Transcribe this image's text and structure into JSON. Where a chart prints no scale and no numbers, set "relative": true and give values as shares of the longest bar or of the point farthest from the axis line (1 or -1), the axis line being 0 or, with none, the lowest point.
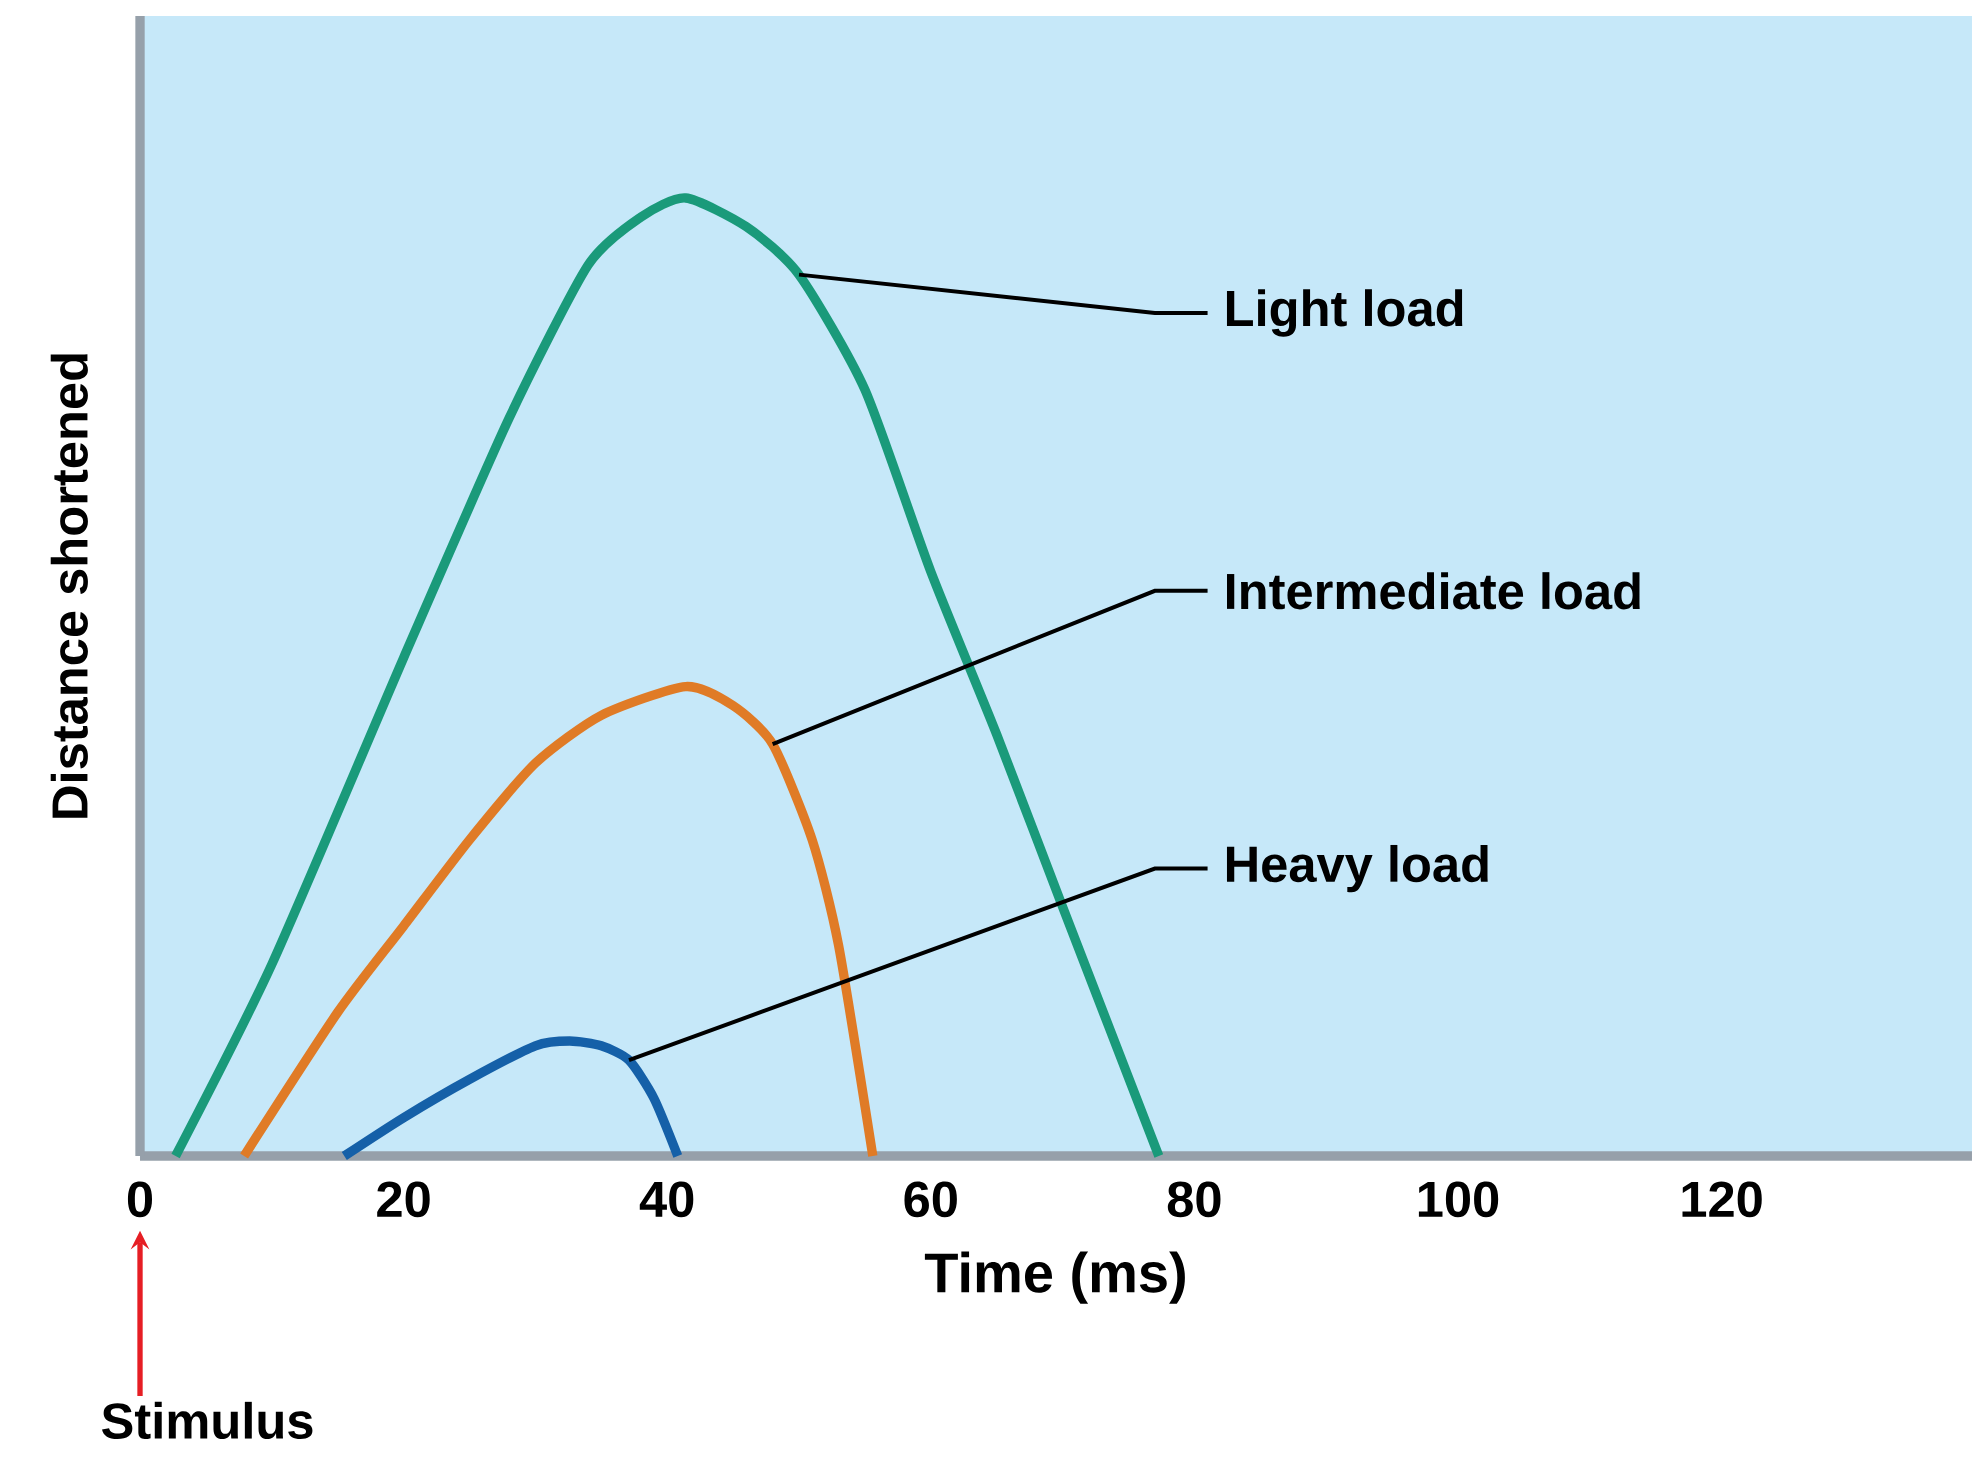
{
  "chart_data": {
    "type": "line",
    "xlabel": "Time (ms)",
    "ylabel": "Distance shortened",
    "relative": true,
    "xlim": [
      0,
      139
    ],
    "xticks": [
      0,
      20,
      40,
      60,
      80,
      100,
      120
    ],
    "grid": false,
    "marker": "none",
    "line_style": "solid",
    "annotations": [
      "Stimulus"
    ],
    "series": [
      {
        "name": "Light load",
        "color": "#1a9a7a",
        "x": [
          2.7,
          10,
          20,
          28,
          34,
          38,
          41.4,
          46,
          50,
          55,
          60,
          65,
          70,
          77.3
        ],
        "values": [
          0,
          0.2,
          0.52,
          0.77,
          0.93,
          0.98,
          1,
          0.97,
          0.92,
          0.8,
          0.61,
          0.44,
          0.26,
          0
        ]
      },
      {
        "name": "Intermediate load",
        "color": "#e07b26",
        "x": [
          7.9,
          15,
          20,
          25,
          30,
          35,
          41.4,
          45,
          48,
          51,
          53,
          55.6
        ],
        "values": [
          0,
          0.15,
          0.24,
          0.33,
          0.41,
          0.46,
          0.49,
          0.47,
          0.43,
          0.33,
          0.22,
          0
        ]
      },
      {
        "name": "Heavy load",
        "color": "#1560a8",
        "x": [
          15.5,
          20,
          25,
          30,
          32.6,
          35,
          37.1,
          39,
          40.8
        ],
        "values": [
          0,
          0.04,
          0.08,
          0.115,
          0.12,
          0.115,
          0.1,
          0.06,
          0
        ]
      }
    ]
  }
}
